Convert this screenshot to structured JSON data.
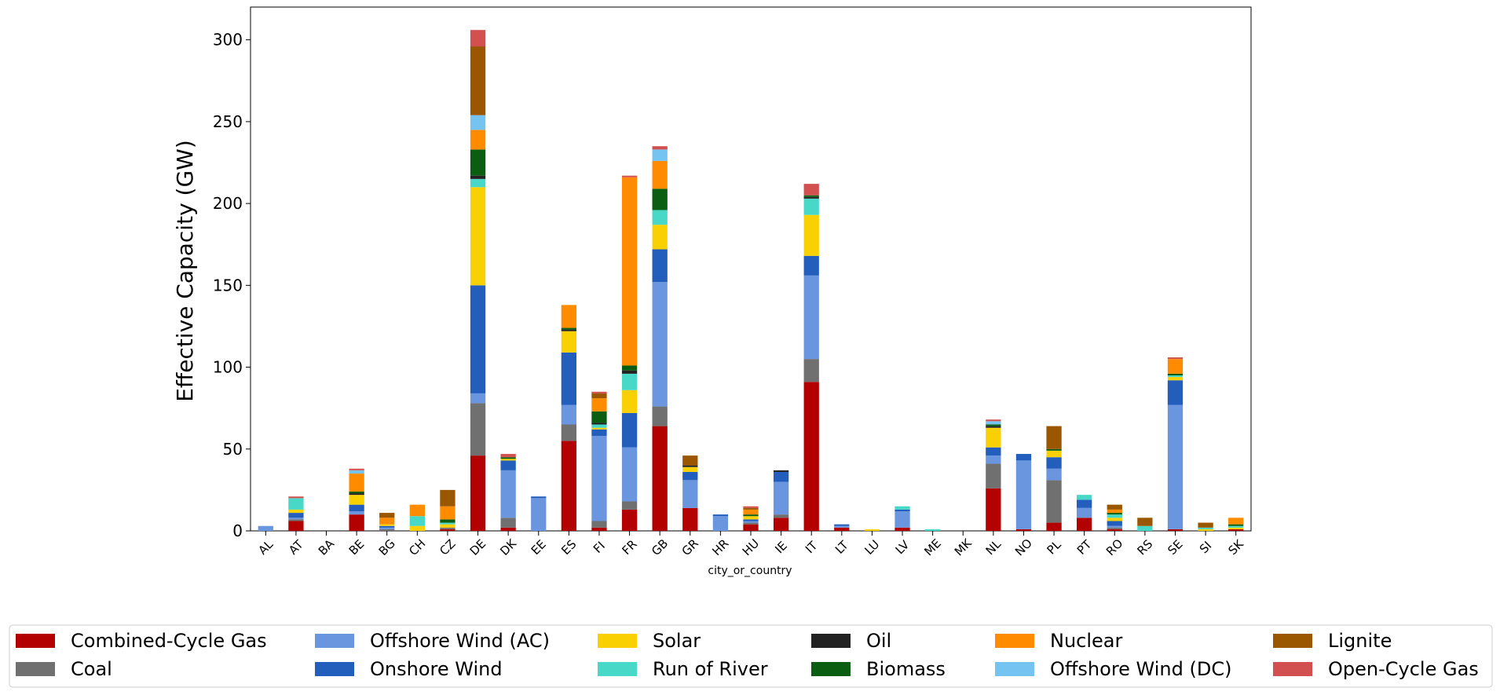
{
  "chart_data": {
    "type": "bar",
    "stacked": true,
    "title": "",
    "xlabel": "city_or_country",
    "ylabel": "Effective Capacity (GW)",
    "ylim": [
      0,
      320
    ],
    "yticks": [
      0,
      50,
      100,
      150,
      200,
      250,
      300
    ],
    "grid": false,
    "legend_position": "bottom",
    "categories": [
      "AL",
      "AT",
      "BA",
      "BE",
      "BG",
      "CH",
      "CZ",
      "DE",
      "DK",
      "EE",
      "ES",
      "FI",
      "FR",
      "GB",
      "GR",
      "HR",
      "HU",
      "IE",
      "IT",
      "LT",
      "LU",
      "LV",
      "ME",
      "MK",
      "NL",
      "NO",
      "PL",
      "PT",
      "RO",
      "RS",
      "SE",
      "SI",
      "SK"
    ],
    "series": [
      {
        "name": "Combined-Cycle Gas",
        "color": "#b30000",
        "values": [
          0,
          6,
          0,
          10,
          0,
          0,
          1,
          46,
          2,
          0,
          55,
          2,
          13,
          64,
          14,
          0,
          4,
          8,
          91,
          2,
          0,
          2,
          0,
          0,
          26,
          1,
          5,
          8,
          1,
          0,
          1,
          0,
          1
        ]
      },
      {
        "name": "Coal",
        "color": "#707070",
        "values": [
          0,
          1,
          0,
          0,
          1,
          0,
          1,
          32,
          6,
          0,
          10,
          4,
          5,
          12,
          0,
          0,
          1,
          2,
          14,
          0,
          0,
          0,
          0,
          0,
          15,
          0,
          26,
          0,
          1,
          0,
          0,
          0,
          0
        ]
      },
      {
        "name": "Offshore Wind (AC)",
        "color": "#6a96df",
        "values": [
          3,
          1,
          0,
          2,
          1,
          0,
          0,
          6,
          29,
          20,
          12,
          52,
          33,
          76,
          17,
          9,
          1,
          20,
          51,
          1,
          0,
          10,
          0,
          0,
          5,
          42,
          7,
          6,
          1,
          0,
          76,
          0,
          0
        ]
      },
      {
        "name": "Onshore Wind",
        "color": "#235ebc",
        "values": [
          0,
          3,
          0,
          4,
          1,
          0,
          0,
          66,
          6,
          1,
          32,
          4,
          21,
          20,
          5,
          1,
          1,
          6,
          12,
          1,
          0,
          1,
          0,
          0,
          5,
          4,
          7,
          5,
          3,
          0,
          15,
          0,
          0
        ]
      },
      {
        "name": "Solar",
        "color": "#f9d002",
        "values": [
          0,
          2,
          0,
          6,
          1,
          3,
          2,
          60,
          1,
          0,
          13,
          1,
          14,
          15,
          3,
          0,
          2,
          0,
          25,
          0,
          1,
          0,
          0,
          0,
          12,
          0,
          4,
          0,
          2,
          0,
          2,
          1,
          1
        ]
      },
      {
        "name": "Run of River",
        "color": "#48d8c8",
        "values": [
          0,
          7,
          0,
          0,
          0,
          6,
          1,
          5,
          0,
          0,
          0,
          2,
          10,
          9,
          0,
          0,
          0,
          0,
          10,
          0,
          0,
          2,
          1,
          0,
          0,
          0,
          0,
          3,
          2,
          3,
          1,
          1,
          1
        ]
      },
      {
        "name": "Oil",
        "color": "#222222",
        "values": [
          0,
          0,
          0,
          1,
          0,
          0,
          0,
          2,
          0,
          0,
          1,
          1,
          2,
          0,
          1,
          0,
          0,
          1,
          1,
          0,
          0,
          0,
          0,
          0,
          1,
          0,
          0,
          0,
          0,
          0,
          0,
          0,
          0
        ]
      },
      {
        "name": "Biomass",
        "color": "#0b5e11",
        "values": [
          0,
          0,
          0,
          1,
          0,
          0,
          2,
          16,
          1,
          0,
          1,
          7,
          3,
          13,
          0,
          0,
          1,
          0,
          1,
          0,
          0,
          0,
          0,
          0,
          1,
          0,
          1,
          0,
          1,
          0,
          1,
          0,
          1
        ]
      },
      {
        "name": "Nuclear",
        "color": "#ff8c00",
        "values": [
          0,
          0,
          0,
          11,
          4,
          7,
          8,
          12,
          0,
          0,
          14,
          8,
          115,
          17,
          0,
          0,
          3,
          0,
          0,
          0,
          0,
          0,
          0,
          0,
          0,
          0,
          0,
          0,
          2,
          0,
          9,
          0,
          4
        ]
      },
      {
        "name": "Offshore Wind (DC)",
        "color": "#74c3f0",
        "values": [
          0,
          0,
          0,
          2,
          0,
          0,
          0,
          9,
          0,
          0,
          0,
          0,
          0,
          7,
          0,
          0,
          0,
          0,
          0,
          0,
          0,
          0,
          0,
          0,
          2,
          0,
          0,
          0,
          0,
          0,
          0,
          0,
          0
        ]
      },
      {
        "name": "Lignite",
        "color": "#9b5600",
        "values": [
          0,
          0,
          0,
          0,
          3,
          0,
          10,
          42,
          0,
          0,
          0,
          3,
          0,
          0,
          6,
          0,
          1,
          0,
          0,
          0,
          0,
          0,
          0,
          0,
          0,
          0,
          14,
          0,
          3,
          5,
          0,
          3,
          0
        ]
      },
      {
        "name": "Open-Cycle Gas",
        "color": "#d35050",
        "values": [
          0,
          1,
          0,
          1,
          0,
          0,
          0,
          10,
          2,
          0,
          0,
          1,
          1,
          2,
          0,
          0,
          1,
          0,
          7,
          0,
          0,
          0,
          0,
          0,
          1,
          0,
          0,
          0,
          0,
          0,
          1,
          0,
          0
        ]
      }
    ]
  }
}
